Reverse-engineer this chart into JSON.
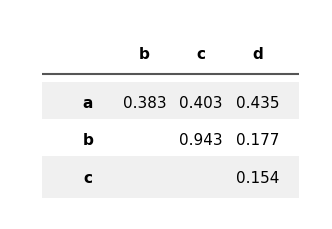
{
  "col_headers": [
    "b",
    "c",
    "d"
  ],
  "row_headers": [
    "a",
    "b",
    "c"
  ],
  "values": [
    [
      "0.383",
      "0.403",
      "0.435"
    ],
    [
      "",
      "0.943",
      "0.177"
    ],
    [
      "",
      "",
      "0.154"
    ]
  ],
  "bg_color_odd": "#f0f0f0",
  "bg_color_even": "#ffffff",
  "header_bg": "#ffffff",
  "font_size": 11,
  "bold_font": "bold",
  "text_color": "#000000",
  "line_color": "#555555",
  "line_width": 1.5
}
